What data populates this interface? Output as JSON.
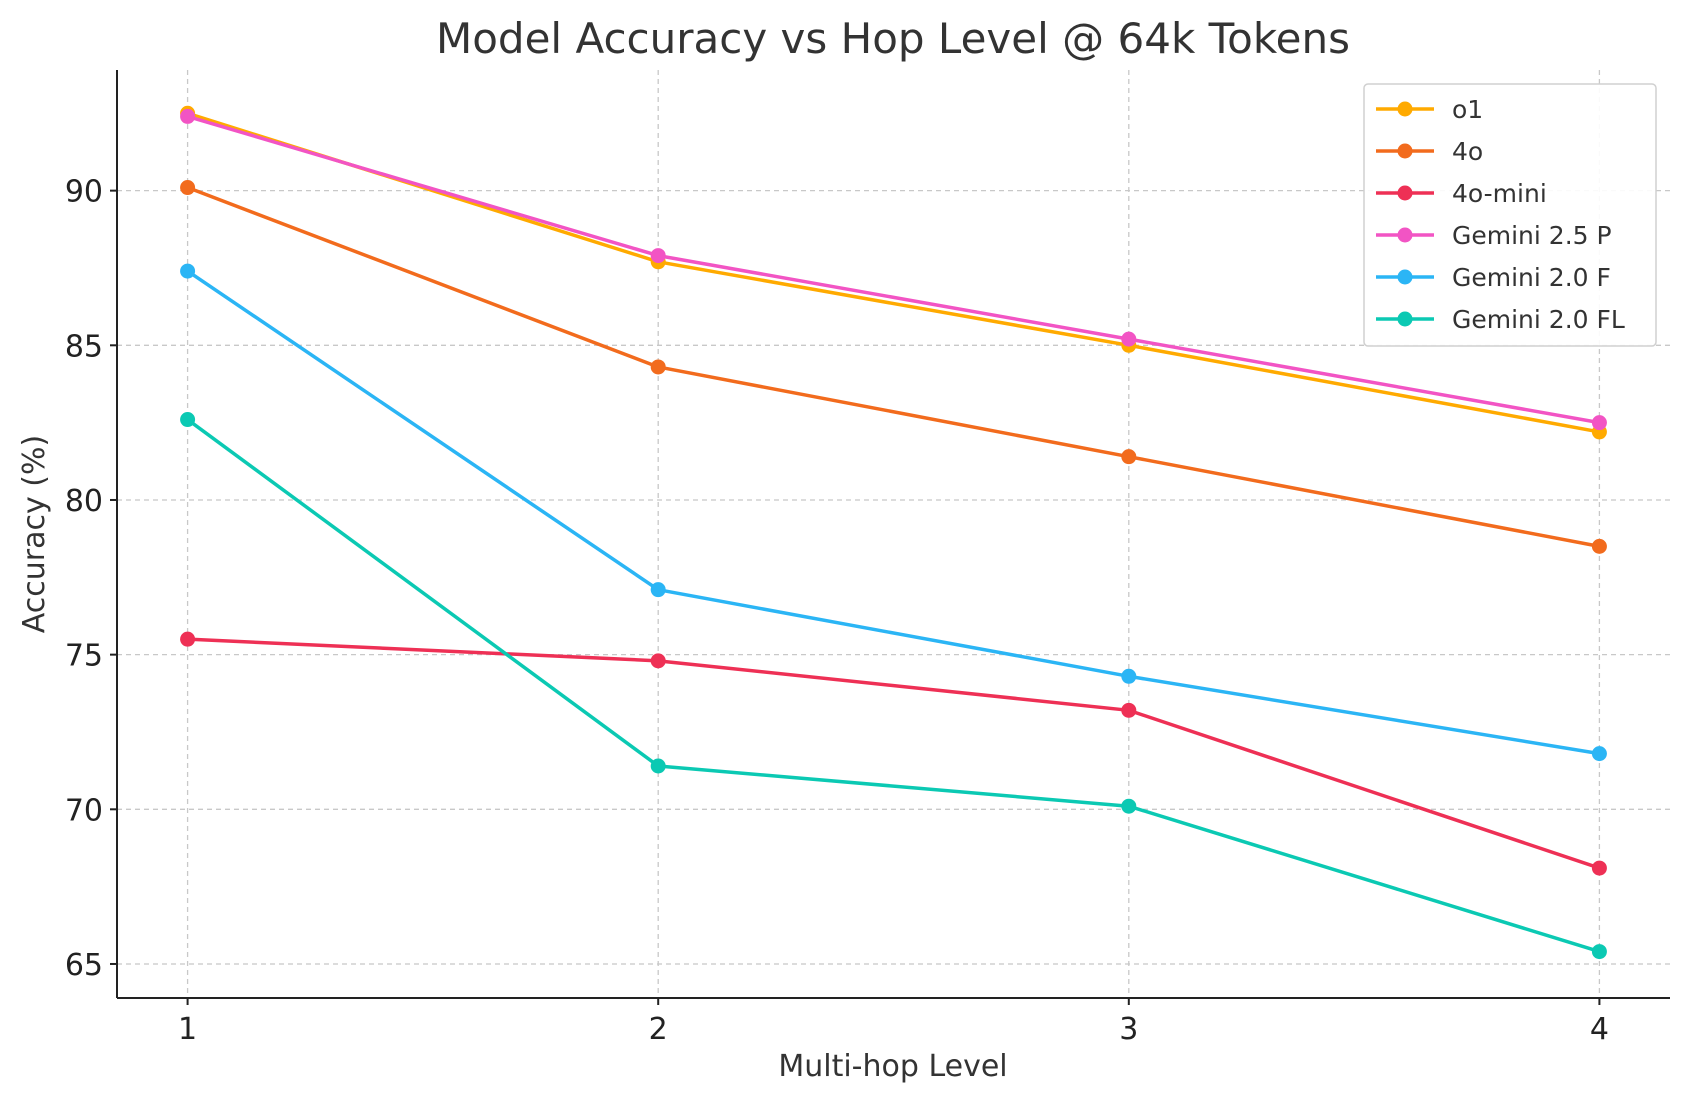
{
  "chart_data": {
    "type": "line",
    "title": "Model Accuracy vs Hop Level @ 64k Tokens",
    "xlabel": "Multi-hop Level",
    "ylabel": "Accuracy (%)",
    "x": [
      1,
      2,
      3,
      4
    ],
    "x_ticks": [
      "1",
      "2",
      "3",
      "4"
    ],
    "y_ticks": [
      "65",
      "70",
      "75",
      "80",
      "85",
      "90"
    ],
    "y_tick_values": [
      65,
      70,
      75,
      80,
      85,
      90
    ],
    "xlim": [
      0.85,
      4.15
    ],
    "ylim": [
      63.9,
      93.9
    ],
    "grid": true,
    "legend_position": "top-right",
    "series": [
      {
        "name": "o1",
        "color": "#FFAA00",
        "values": [
          92.5,
          87.7,
          85.0,
          82.2
        ]
      },
      {
        "name": "4o",
        "color": "#F26B1D",
        "values": [
          90.1,
          84.3,
          81.4,
          78.5
        ]
      },
      {
        "name": "4o-mini",
        "color": "#EE3055",
        "values": [
          75.5,
          74.8,
          73.2,
          68.1
        ]
      },
      {
        "name": "Gemini 2.5 P",
        "color": "#F254C4",
        "values": [
          92.4,
          87.9,
          85.2,
          82.5
        ]
      },
      {
        "name": "Gemini 2.0 F",
        "color": "#2BB5F5",
        "values": [
          87.4,
          77.1,
          74.3,
          71.8
        ]
      },
      {
        "name": "Gemini 2.0 FL",
        "color": "#0BC9B3",
        "values": [
          82.6,
          71.4,
          70.1,
          65.4
        ]
      }
    ]
  }
}
